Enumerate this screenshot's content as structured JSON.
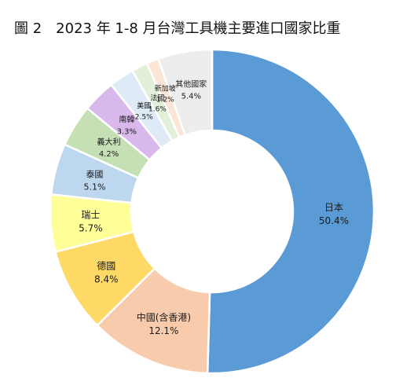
{
  "chart_data": {
    "type": "pie",
    "variant": "donut",
    "title": "圖 2　2023 年 1-8 月台灣工具機主要進口國家比重",
    "start": "12 o'clock",
    "direction": "clockwise",
    "slices": [
      {
        "label": "日本",
        "value": 50.4,
        "value_label": "50.4%",
        "color": "#5B9BD5"
      },
      {
        "label": "中國(含香港)",
        "value": 12.1,
        "value_label": "12.1%",
        "color": "#F8CBAD"
      },
      {
        "label": "德國",
        "value": 8.4,
        "value_label": "8.4%",
        "color": "#FFD966"
      },
      {
        "label": "瑞士",
        "value": 5.7,
        "value_label": "5.7%",
        "color": "#FFFF99"
      },
      {
        "label": "泰國",
        "value": 5.1,
        "value_label": "5.1%",
        "color": "#BDD7EE"
      },
      {
        "label": "義大利",
        "value": 4.2,
        "value_label": "4.2%",
        "color": "#C5E0B4"
      },
      {
        "label": "南韓",
        "value": 3.3,
        "value_label": "3.3%",
        "color": "#D9B8EC"
      },
      {
        "label": "美國",
        "value": 2.5,
        "value_label": "2.5%",
        "color": "#DEEBF7"
      },
      {
        "label": "法國",
        "value": 1.6,
        "value_label": "1.6%",
        "color": "#E2F0D9"
      },
      {
        "label": "新加坡",
        "value": 1.2,
        "value_label": "1.2%",
        "color": "#FBE5D6"
      },
      {
        "label": "其他國家",
        "value": 5.4,
        "value_label": "5.4%",
        "color": "#EDEDED"
      }
    ]
  }
}
